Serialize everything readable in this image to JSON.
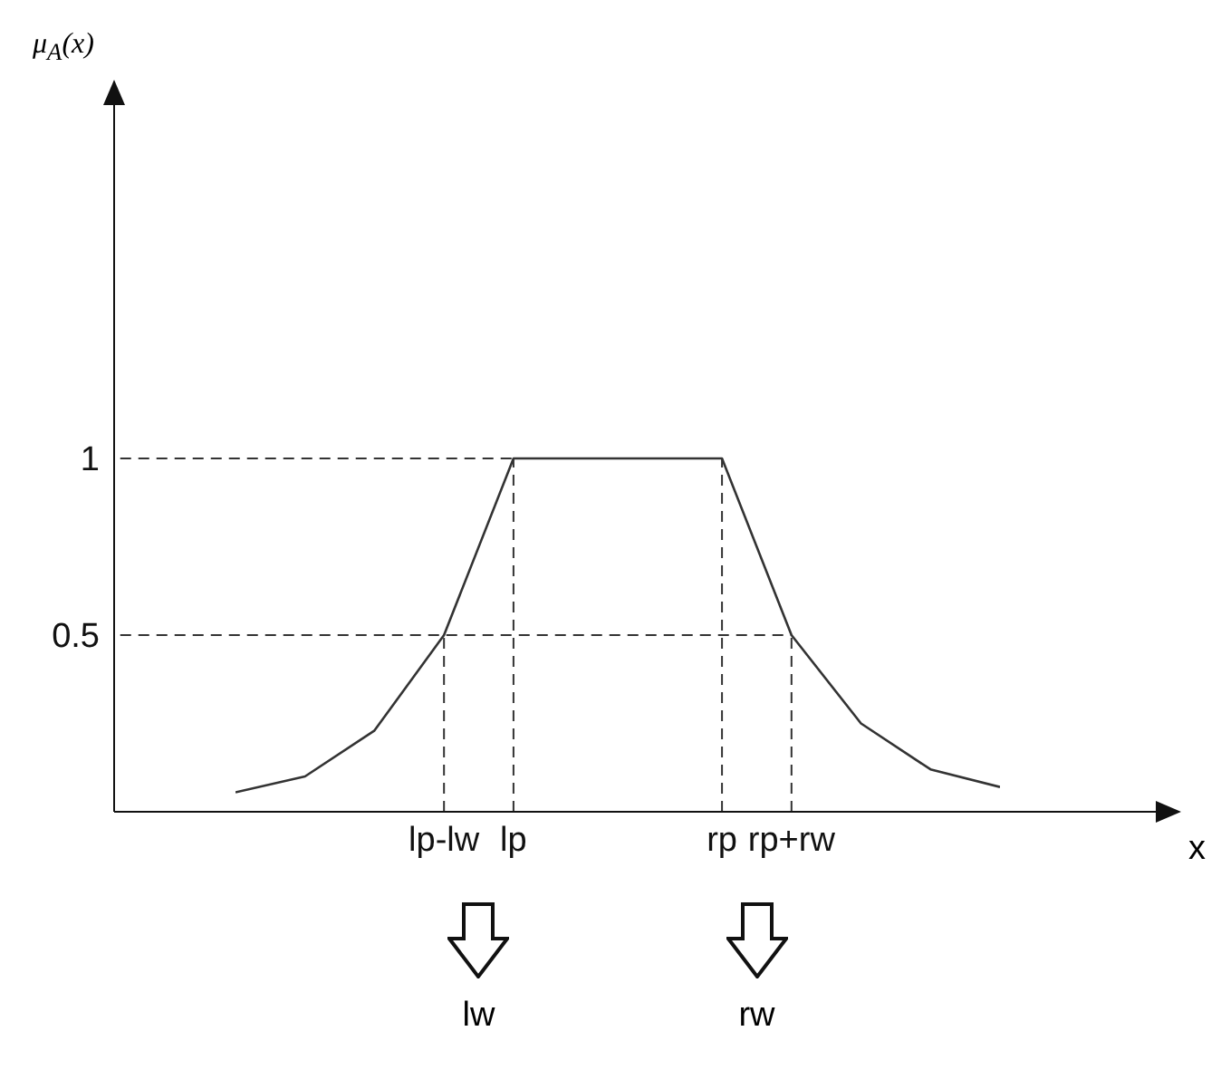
{
  "chart_data": {
    "type": "line",
    "ylabel": "μ$_{A}$(x)",
    "xlabel": "x",
    "categories": [
      null,
      null,
      null,
      "lp-lw",
      "lp",
      null,
      null,
      "rp",
      "rp+rw",
      null,
      null,
      null
    ],
    "series": [
      {
        "color": "#333333",
        "values": [
          0.055,
          0.1,
          0.23,
          0.5,
          1,
          1,
          1,
          1,
          0.5,
          0.25,
          0.12,
          0.07
        ]
      }
    ],
    "ylim": [
      0,
      2
    ],
    "yticks": [
      0.5,
      1
    ],
    "ref_lines": [
      {
        "axis": "y",
        "value": 1,
        "line_style": "dashed"
      },
      {
        "axis": "y",
        "value": 0.5,
        "line_style": "dashed"
      },
      {
        "axis": "x",
        "value": "lp-lw",
        "line_style": "dashed"
      },
      {
        "axis": "x",
        "value": "lp",
        "line_style": "dashed"
      },
      {
        "axis": "x",
        "value": "rp",
        "line_style": "dashed"
      },
      {
        "axis": "x",
        "value": "rp+rw",
        "line_style": "dashed"
      }
    ],
    "annotations": [
      "lw",
      "rw"
    ],
    "grid": false,
    "legend": false,
    "marker": "none",
    "line_style": "solid"
  }
}
